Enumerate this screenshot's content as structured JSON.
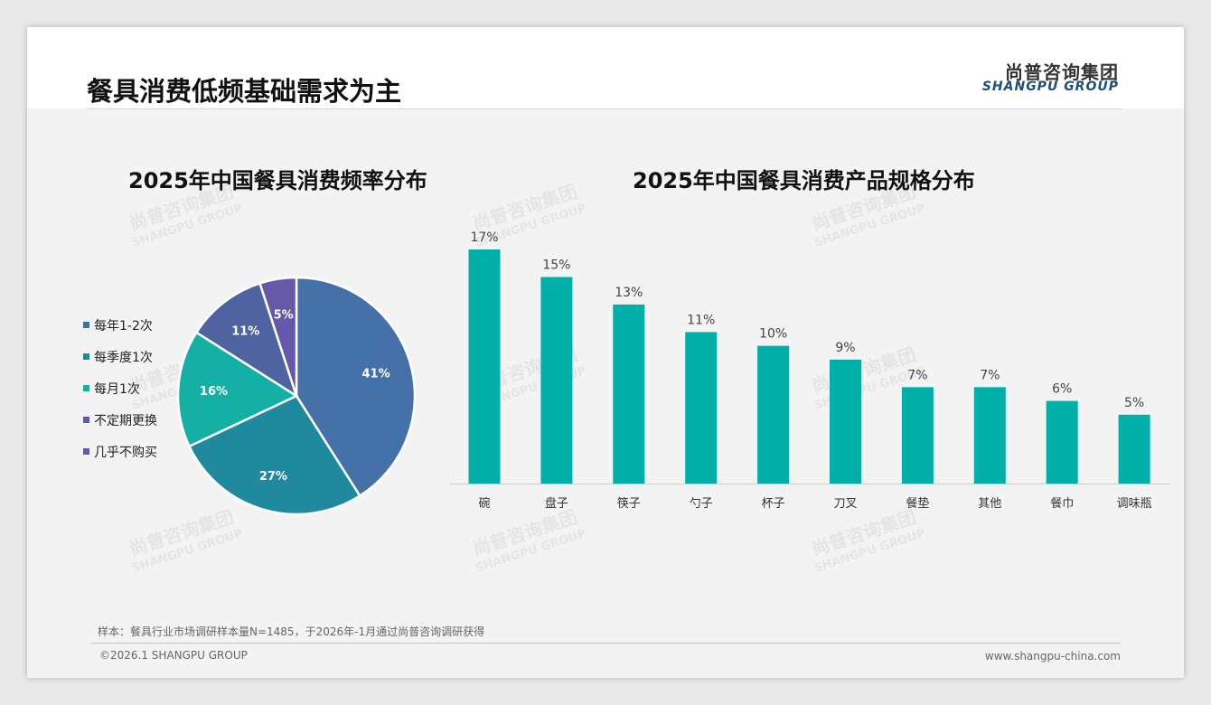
{
  "header": {
    "title": "餐具消费低频基础需求为主",
    "logo_cn": "尚普咨询集团",
    "logo_en": "SHANGPU GROUP"
  },
  "watermark": {
    "cn": "尚普咨询集团",
    "en": "SHANGPU GROUP"
  },
  "chart_data": [
    {
      "type": "pie",
      "title": "2025年中国餐具消费频率分布",
      "legend_position": "left",
      "categories": [
        "每年1-2次",
        "每季度1次",
        "每月1次",
        "不定期更换",
        "几乎不购买"
      ],
      "values": [
        41,
        27,
        16,
        11,
        5
      ],
      "labels": [
        "41%",
        "27%",
        "16%",
        "11%",
        "5%"
      ],
      "colors": [
        "#4472a8",
        "#1f8a9e",
        "#14b0a5",
        "#4f63a0",
        "#6558a8"
      ]
    },
    {
      "type": "bar",
      "title": "2025年中国餐具消费产品规格分布",
      "categories": [
        "碗",
        "盘子",
        "筷子",
        "勺子",
        "杯子",
        "刀叉",
        "餐垫",
        "其他",
        "餐巾",
        "调味瓶"
      ],
      "values": [
        17,
        15,
        13,
        11,
        10,
        9,
        7,
        7,
        6,
        5
      ],
      "labels": [
        "17%",
        "15%",
        "13%",
        "11%",
        "10%",
        "9%",
        "7%",
        "7%",
        "6%",
        "5%"
      ],
      "ylim": [
        0,
        17
      ],
      "color": "#00b0a8",
      "grid": false
    }
  ],
  "footer": {
    "note": "样本：餐具行业市场调研样本量N=1485，于2026年-1月通过尚普咨询调研获得",
    "copyright": "©2026.1 SHANGPU GROUP",
    "url": "www.shangpu-china.com"
  }
}
